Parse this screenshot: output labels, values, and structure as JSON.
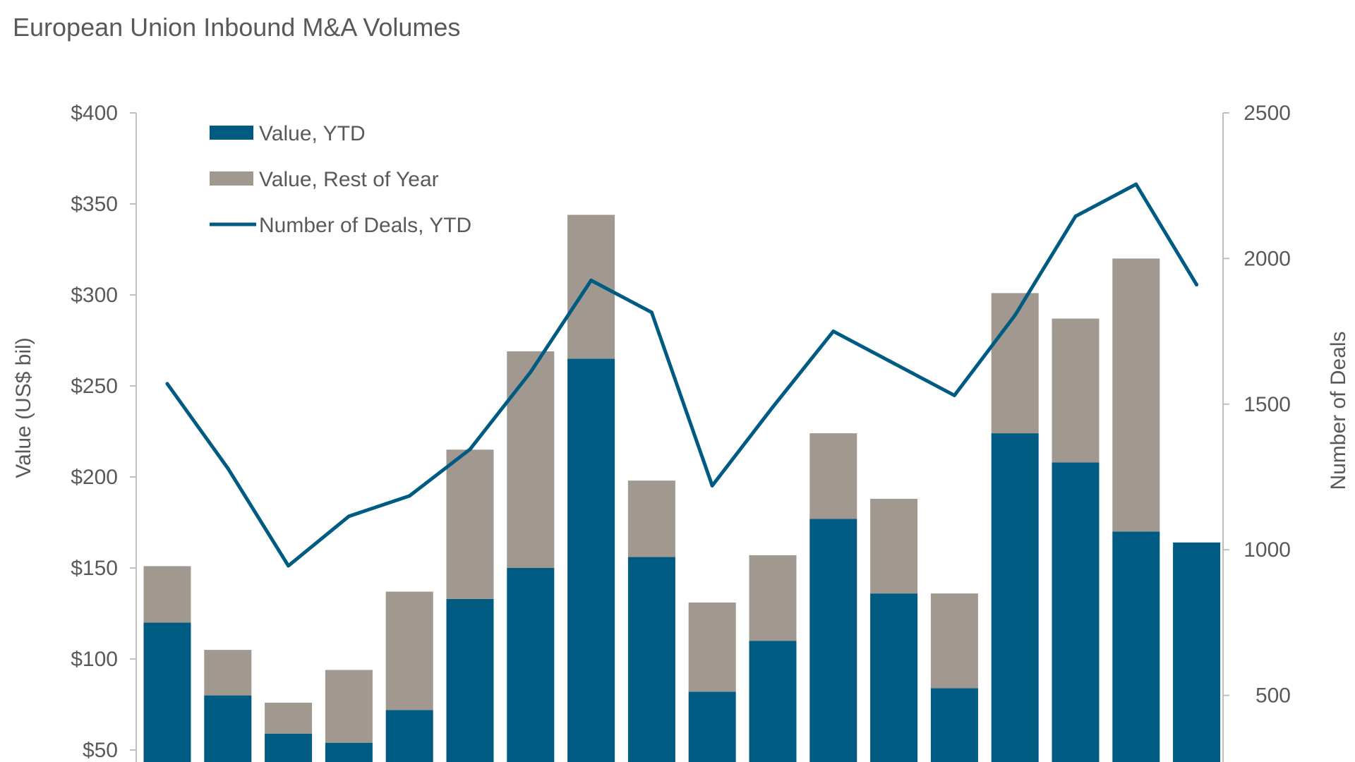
{
  "chart_data": {
    "type": "bar",
    "title": "European Union Inbound M&A Volumes",
    "ylabel": "Value (US$ bil)",
    "y2label": "Number of Deals",
    "ylim": [
      0,
      400
    ],
    "y2lim": [
      0,
      2500
    ],
    "y_ticks": [
      "$50",
      "$100",
      "$150",
      "$200",
      "$250",
      "$300",
      "$350",
      "$400"
    ],
    "y_tick_values": [
      50,
      100,
      150,
      200,
      250,
      300,
      350,
      400
    ],
    "y2_ticks": [
      "500",
      "1000",
      "1500",
      "2000",
      "2500"
    ],
    "y2_tick_values": [
      500,
      1000,
      1500,
      2000,
      2500
    ],
    "stacked": true,
    "legend_position": "top-left",
    "series": [
      {
        "name": "Value, YTD",
        "kind": "bar",
        "color": "#005b82",
        "values": [
          120,
          80,
          59,
          54,
          72,
          133,
          150,
          265,
          156,
          82,
          110,
          177,
          136,
          84,
          224,
          208,
          170,
          164
        ]
      },
      {
        "name": "Value, Rest of Year",
        "kind": "bar",
        "color": "#a19890",
        "values": [
          31,
          25,
          17,
          40,
          65,
          82,
          119,
          79,
          42,
          49,
          47,
          47,
          52,
          52,
          77,
          79,
          150,
          0
        ]
      },
      {
        "name": "Number of Deals, YTD",
        "kind": "line",
        "axis": "right",
        "color": "#005b82",
        "values": [
          1570,
          1280,
          945,
          1115,
          1185,
          1345,
          1610,
          1925,
          1815,
          1220,
          1490,
          1750,
          1640,
          1530,
          1805,
          2145,
          2255,
          1910
        ]
      }
    ]
  }
}
